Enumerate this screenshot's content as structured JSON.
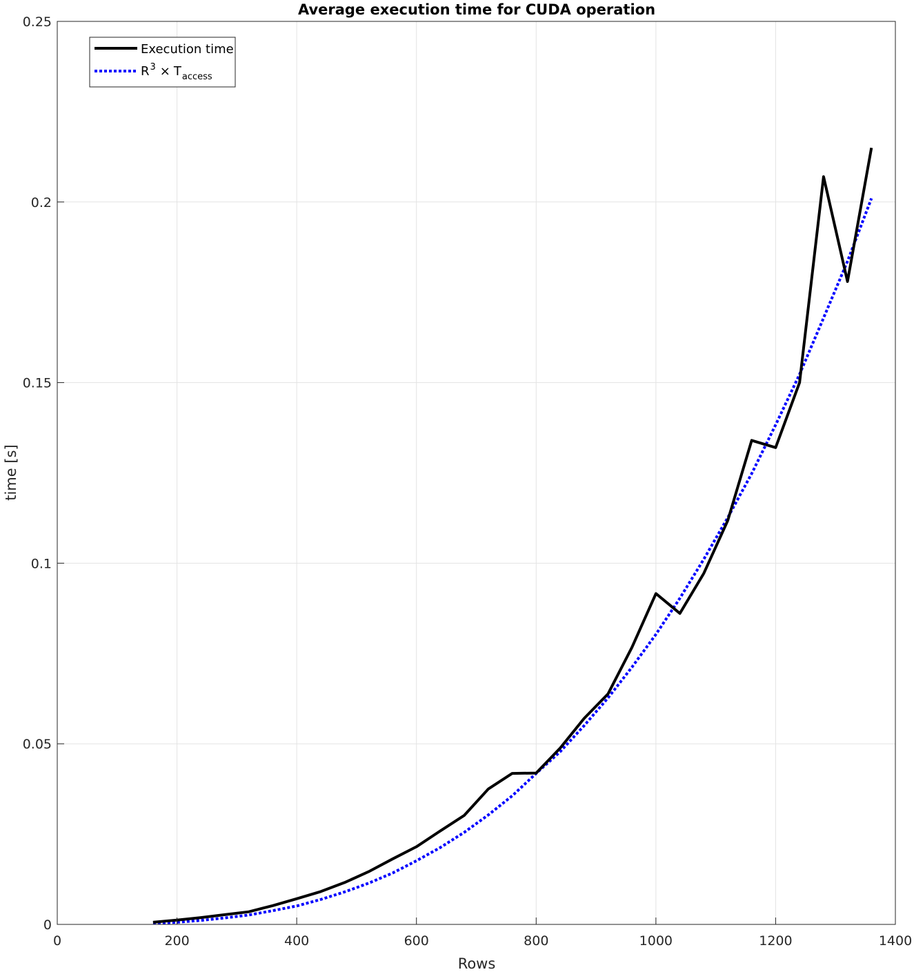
{
  "chart_data": {
    "type": "line",
    "title": "Average execution time for CUDA operation",
    "xlabel": "Rows",
    "ylabel": "time [s]",
    "xlim": [
      0,
      1400
    ],
    "ylim": [
      0,
      0.25
    ],
    "xticks": [
      0,
      200,
      400,
      600,
      800,
      1000,
      1200,
      1400
    ],
    "xtick_labels": [
      "0",
      "200",
      "400",
      "600",
      "800",
      "1000",
      "1200",
      "1400"
    ],
    "yticks": [
      0,
      0.05,
      0.1,
      0.15,
      0.2,
      0.25
    ],
    "ytick_labels": [
      "0",
      "0.05",
      "0.1",
      "0.15",
      "0.2",
      "0.25"
    ],
    "grid": true,
    "legend_position": "top-left",
    "series": [
      {
        "name": "Execution time",
        "color": "#000000",
        "style": "solid",
        "x": [
          160,
          200,
          240,
          280,
          320,
          360,
          400,
          440,
          480,
          520,
          560,
          600,
          640,
          680,
          720,
          760,
          800,
          840,
          880,
          920,
          960,
          1000,
          1040,
          1080,
          1120,
          1160,
          1200,
          1240,
          1280,
          1320,
          1360
        ],
        "y": [
          0.0006,
          0.0012,
          0.0019,
          0.0027,
          0.0035,
          0.0052,
          0.0071,
          0.0091,
          0.0116,
          0.0146,
          0.0181,
          0.0215,
          0.0259,
          0.0302,
          0.0375,
          0.0418,
          0.0419,
          0.0488,
          0.057,
          0.0638,
          0.0767,
          0.0916,
          0.0861,
          0.0972,
          0.1118,
          0.134,
          0.132,
          0.15,
          0.207,
          0.178,
          0.215
        ]
      },
      {
        "name_parts": {
          "base": "R",
          "exponent": "3",
          "operator": "×",
          "symbol": "T",
          "subscript": "access"
        },
        "color": "#0000ff",
        "style": "dotted",
        "x": [
          160,
          200,
          240,
          280,
          320,
          360,
          400,
          440,
          480,
          520,
          560,
          600,
          640,
          680,
          720,
          760,
          800,
          840,
          880,
          920,
          960,
          1000,
          1040,
          1080,
          1120,
          1160,
          1200,
          1240,
          1280,
          1320,
          1360
        ],
        "y": [
          0.0003,
          0.0006,
          0.0011,
          0.0018,
          0.0026,
          0.0038,
          0.0051,
          0.0069,
          0.009,
          0.0114,
          0.0142,
          0.0176,
          0.0213,
          0.0255,
          0.0303,
          0.0356,
          0.0418,
          0.0478,
          0.055,
          0.0627,
          0.0712,
          0.0803,
          0.0903,
          0.1011,
          0.1126,
          0.1248,
          0.1383,
          0.1523,
          0.1679,
          0.1836,
          0.201
        ]
      }
    ]
  }
}
